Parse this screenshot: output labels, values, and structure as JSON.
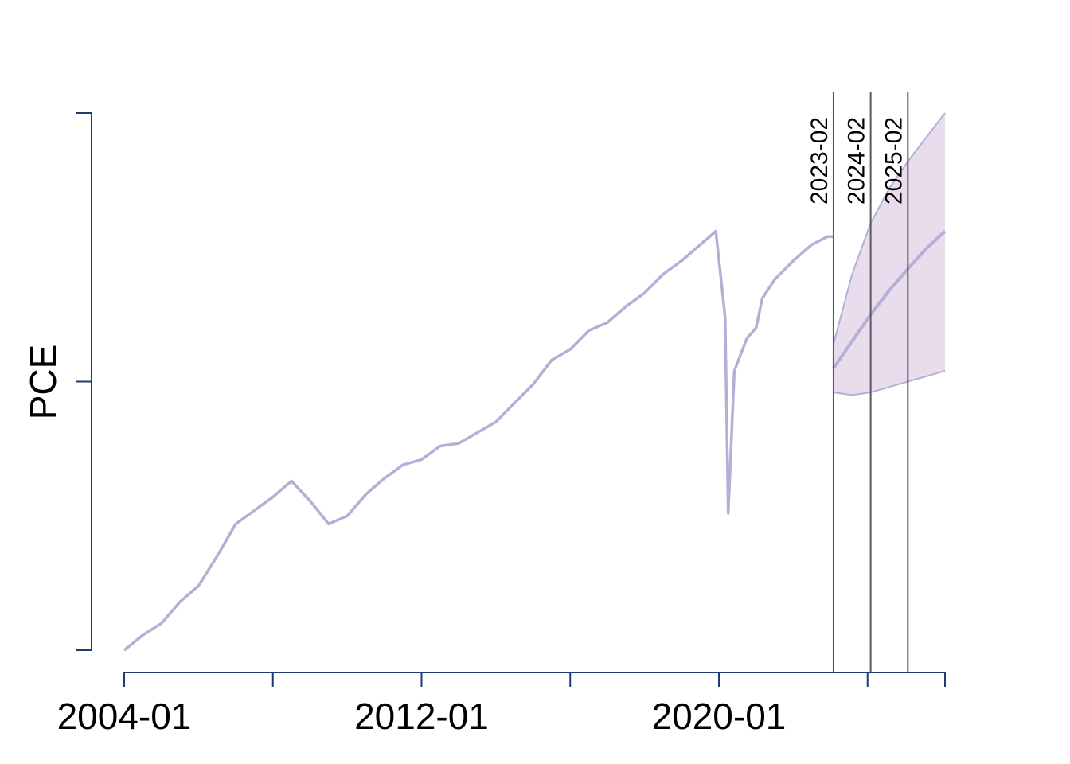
{
  "chart_data": {
    "type": "line",
    "ylabel": "PCE",
    "x_tick_labels": [
      "2004-01",
      "2012-01",
      "2020-01"
    ],
    "xlim": [
      "2004-01",
      "2026-02"
    ],
    "ylim": [
      0,
      1
    ],
    "y_ticks_unlabeled": true,
    "vertical_markers": [
      "2023-02",
      "2024-02",
      "2025-02"
    ],
    "series": [
      {
        "role": "observed",
        "color": "#b3b0d6",
        "points": [
          [
            "2004-01",
            0.0
          ],
          [
            "2004-07",
            0.028
          ],
          [
            "2005-01",
            0.05
          ],
          [
            "2005-07",
            0.09
          ],
          [
            "2006-01",
            0.12
          ],
          [
            "2006-07",
            0.175
          ],
          [
            "2007-01",
            0.235
          ],
          [
            "2007-07",
            0.26
          ],
          [
            "2008-01",
            0.285
          ],
          [
            "2008-07",
            0.315
          ],
          [
            "2009-01",
            0.278
          ],
          [
            "2009-07",
            0.235
          ],
          [
            "2010-01",
            0.25
          ],
          [
            "2010-07",
            0.29
          ],
          [
            "2011-01",
            0.32
          ],
          [
            "2011-07",
            0.345
          ],
          [
            "2012-01",
            0.355
          ],
          [
            "2012-07",
            0.38
          ],
          [
            "2013-01",
            0.385
          ],
          [
            "2013-07",
            0.405
          ],
          [
            "2014-01",
            0.425
          ],
          [
            "2014-07",
            0.46
          ],
          [
            "2015-01",
            0.495
          ],
          [
            "2015-07",
            0.54
          ],
          [
            "2016-01",
            0.56
          ],
          [
            "2016-07",
            0.595
          ],
          [
            "2017-01",
            0.61
          ],
          [
            "2017-07",
            0.64
          ],
          [
            "2018-01",
            0.665
          ],
          [
            "2018-07",
            0.7
          ],
          [
            "2019-01",
            0.725
          ],
          [
            "2019-07",
            0.755
          ],
          [
            "2019-12",
            0.78
          ],
          [
            "2020-03",
            0.62
          ],
          [
            "2020-04",
            0.255
          ],
          [
            "2020-06",
            0.52
          ],
          [
            "2020-10",
            0.58
          ],
          [
            "2021-01",
            0.6
          ],
          [
            "2021-03",
            0.655
          ],
          [
            "2021-07",
            0.69
          ],
          [
            "2022-01",
            0.725
          ],
          [
            "2022-07",
            0.755
          ],
          [
            "2022-12",
            0.77
          ],
          [
            "2023-02",
            0.77
          ]
        ]
      },
      {
        "role": "forecast",
        "color": "#b3b0d6",
        "points": [
          [
            "2023-02",
            0.525
          ],
          [
            "2023-08",
            0.575
          ],
          [
            "2024-02",
            0.625
          ],
          [
            "2024-08",
            0.67
          ],
          [
            "2025-02",
            0.71
          ],
          [
            "2025-08",
            0.748
          ],
          [
            "2026-02",
            0.78
          ]
        ]
      },
      {
        "role": "forecast-interval",
        "color": "#e8dced",
        "upper": [
          [
            "2023-02",
            0.57
          ],
          [
            "2023-08",
            0.7
          ],
          [
            "2024-02",
            0.795
          ],
          [
            "2024-08",
            0.86
          ],
          [
            "2025-02",
            0.91
          ],
          [
            "2025-08",
            0.955
          ],
          [
            "2026-02",
            1.0
          ]
        ],
        "lower": [
          [
            "2023-02",
            0.48
          ],
          [
            "2023-08",
            0.475
          ],
          [
            "2024-02",
            0.48
          ],
          [
            "2024-08",
            0.49
          ],
          [
            "2025-02",
            0.5
          ],
          [
            "2025-08",
            0.51
          ],
          [
            "2026-02",
            0.52
          ]
        ]
      }
    ]
  }
}
